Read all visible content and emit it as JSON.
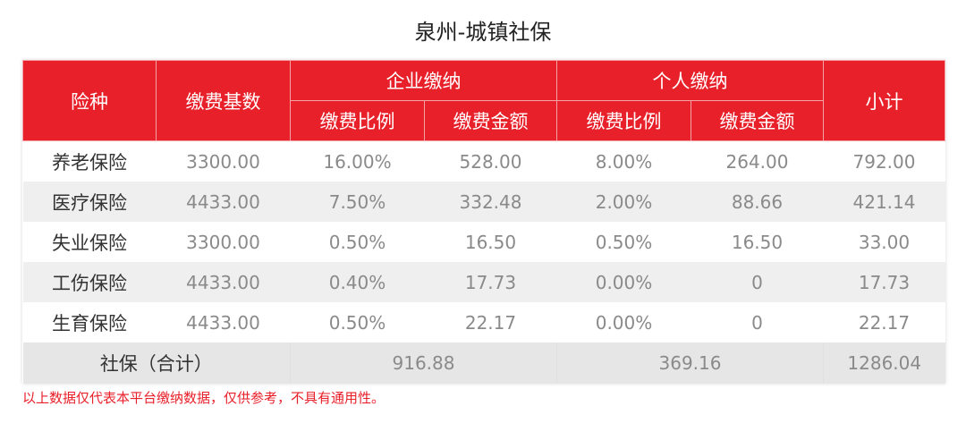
{
  "title": "泉州-城镇社保",
  "colors": {
    "header_bg": "#e8202a",
    "header_text": "#ffffff",
    "row_alt_bg": "#efefef",
    "note_text": "#e8202a"
  },
  "headers": {
    "type": "险种",
    "base": "缴费基数",
    "company_group": "企业缴纳",
    "personal_group": "个人缴纳",
    "rate": "缴费比例",
    "amount": "缴费金额",
    "subtotal": "小计"
  },
  "rows": [
    {
      "name": "养老保险",
      "base": "3300.00",
      "company_rate": "16.00%",
      "company_amount": "528.00",
      "personal_rate": "8.00%",
      "personal_amount": "264.00",
      "subtotal": "792.00"
    },
    {
      "name": "医疗保险",
      "base": "4433.00",
      "company_rate": "7.50%",
      "company_amount": "332.48",
      "personal_rate": "2.00%",
      "personal_amount": "88.66",
      "subtotal": "421.14"
    },
    {
      "name": "失业保险",
      "base": "3300.00",
      "company_rate": "0.50%",
      "company_amount": "16.50",
      "personal_rate": "0.50%",
      "personal_amount": "16.50",
      "subtotal": "33.00"
    },
    {
      "name": "工伤保险",
      "base": "4433.00",
      "company_rate": "0.40%",
      "company_amount": "17.73",
      "personal_rate": "0.00%",
      "personal_amount": "0",
      "subtotal": "17.73"
    },
    {
      "name": "生育保险",
      "base": "4433.00",
      "company_rate": "0.50%",
      "company_amount": "22.17",
      "personal_rate": "0.00%",
      "personal_amount": "0",
      "subtotal": "22.17"
    }
  ],
  "total": {
    "label": "社保（合计）",
    "company": "916.88",
    "personal": "369.16",
    "subtotal": "1286.04"
  },
  "note": "以上数据仅代表本平台缴纳数据，仅供参考，不具有通用性。"
}
